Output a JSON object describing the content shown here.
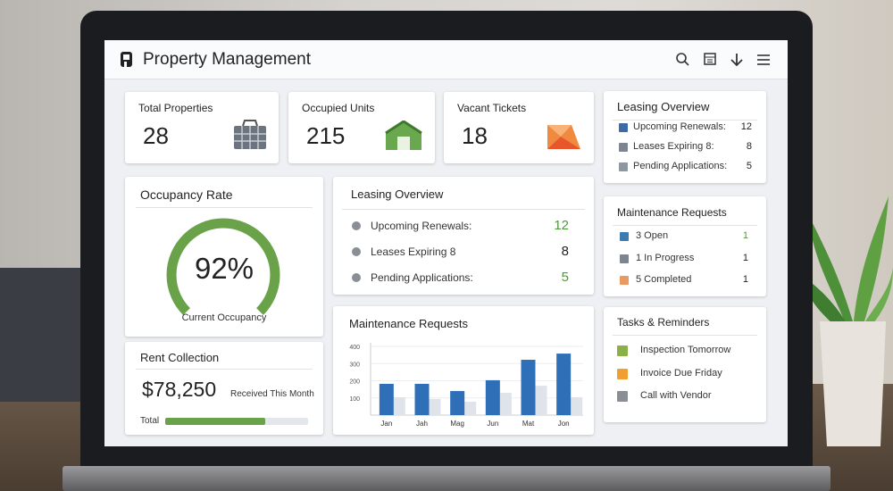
{
  "header": {
    "title": "Property Management"
  },
  "stats": [
    {
      "label": "Total Properties",
      "value": "28"
    },
    {
      "label": "Occupied Units",
      "value": "215"
    },
    {
      "label": "Vacant Tickets",
      "value": "18"
    }
  ],
  "leasing_side": {
    "title": "Leasing Overview",
    "items": [
      {
        "label": "Upcoming Renewals:",
        "value": "12"
      },
      {
        "label": "Leases Expiring 8:",
        "value": "8"
      },
      {
        "label": "Pending Applications:",
        "value": "5"
      }
    ]
  },
  "occupancy": {
    "title": "Occupancy Rate",
    "value": "92%",
    "caption": "Current Occupancy"
  },
  "leasing_main": {
    "title": "Leasing Overview",
    "items": [
      {
        "label": "Upcoming Renewals:",
        "value": "12"
      },
      {
        "label": "Leases Expiring 8",
        "value": "8"
      },
      {
        "label": "Pending Applications:",
        "value": "5"
      }
    ]
  },
  "maintenance_side": {
    "title": "Maintenance Requests",
    "items": [
      {
        "label": "3 Open",
        "value": "1"
      },
      {
        "label": "1 In Progress",
        "value": "1"
      },
      {
        "label": "5 Completed",
        "value": "1"
      }
    ]
  },
  "tasks": {
    "title": "Tasks & Reminders",
    "items": [
      "Inspection Tomorrow",
      "Invoice Due Friday",
      "Call with Vendor"
    ]
  },
  "rent": {
    "title": "Rent Collection",
    "amount": "$78,250",
    "note": "Received This Month",
    "total_label": "Total"
  },
  "chart_data": {
    "type": "bar",
    "title": "Maintenance Requests",
    "categories": [
      "Jan",
      "Jah",
      "Mag",
      "Jun",
      "Mat",
      "Jon"
    ],
    "series": [
      {
        "color": "#2f6fb8",
        "values": [
          182,
          182,
          140,
          203,
          322,
          358
        ]
      },
      {
        "color": "#dfe3ea",
        "values": [
          104,
          94,
          78,
          130,
          171,
          104
        ]
      }
    ],
    "ylim": [
      0,
      400
    ],
    "yticks": [
      100,
      200,
      300,
      400
    ],
    "grid": true
  }
}
